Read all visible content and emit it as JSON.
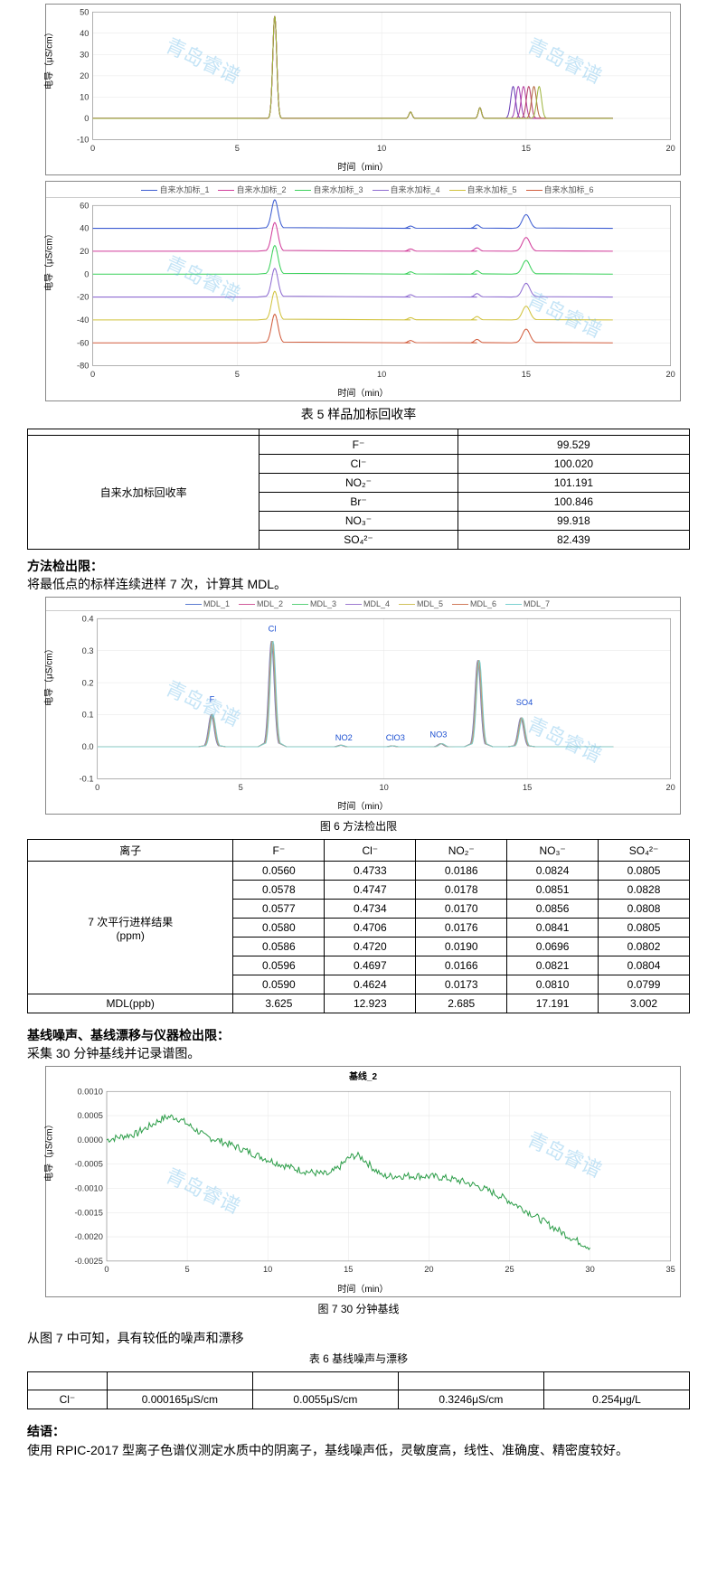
{
  "watermark_text": "青岛睿谱",
  "axis": {
    "y_label": "电导（μS/cm）",
    "x_label": "时间（min）"
  },
  "chart1": {
    "type": "line",
    "xlim": [
      0,
      20
    ],
    "xticks": [
      0,
      5,
      10,
      15,
      20
    ],
    "ylim": [
      -10,
      50
    ],
    "yticks": [
      -10,
      0,
      10,
      20,
      30,
      40,
      50
    ],
    "grid_color": "#d9d9d9",
    "series_colors": [
      "#6a3fb5",
      "#9f3fb5",
      "#b53f9f",
      "#b53f6a",
      "#b56a3f",
      "#9fb53f"
    ],
    "peak_main_x": 6.3,
    "peak_main_h": 48,
    "peak2_x": 11.0,
    "peak2_h": 3,
    "peak3_x": 13.4,
    "peak3_h": 5,
    "peak4_x": 15.0,
    "peak4_h": 15,
    "peak4_spread": 0.5
  },
  "chart2": {
    "type": "line-stacked",
    "xlim": [
      0,
      20
    ],
    "xticks": [
      0,
      5,
      10,
      15,
      20
    ],
    "ylim": [
      -80,
      60
    ],
    "yticks": [
      -80,
      -60,
      -40,
      -20,
      0,
      20,
      40,
      60
    ],
    "offset_step": -20,
    "legend_items": [
      "自来水加标_1",
      "自来水加标_2",
      "自来水加标_3",
      "自来水加标_4",
      "自来水加标_5",
      "自来水加标_6"
    ],
    "series_colors": [
      "#3b5bd1",
      "#d13b9a",
      "#3bd15b",
      "#8e6bd1",
      "#d1c23b",
      "#d15b3b"
    ],
    "peak_main_x": 6.3,
    "peak_main_h": 25,
    "peak4_x": 15.0,
    "peak4_h": 12
  },
  "table5": {
    "caption": "表 5 样品加标回收率",
    "row_label": "自来水加标回收率",
    "rows": [
      {
        "ion": "F⁻",
        "val": "99.529"
      },
      {
        "ion": "Cl⁻",
        "val": "100.020"
      },
      {
        "ion": "NO₂⁻",
        "val": "101.191"
      },
      {
        "ion": "Br⁻",
        "val": "100.846"
      },
      {
        "ion": "NO₃⁻",
        "val": "99.918"
      },
      {
        "ion": "SO₄²⁻",
        "val": "82.439"
      }
    ]
  },
  "mdl_section": {
    "head": "方法检出限：",
    "body": "将最低点的标样连续进样 7 次，计算其 MDL。"
  },
  "chart3": {
    "type": "line",
    "caption": "图 6 方法检出限",
    "xlim": [
      0,
      20
    ],
    "xticks": [
      0,
      5,
      10,
      15,
      20
    ],
    "ylim": [
      -0.1,
      0.4
    ],
    "yticks": [
      -0.1,
      0.0,
      0.1,
      0.2,
      0.3,
      0.4
    ],
    "legend_items": [
      "MDL_1",
      "MDL_2",
      "MDL_3",
      "MDL_4",
      "MDL_5",
      "MDL_6",
      "MDL_7"
    ],
    "series_colors": [
      "#5b7bd1",
      "#d15b9a",
      "#5bd17b",
      "#9e7bd1",
      "#d1c25b",
      "#d17b5b",
      "#7bd1d1"
    ],
    "peaks": [
      {
        "label": "F",
        "x": 4.0,
        "h": 0.1,
        "lx": 4.0,
        "ly": 0.14
      },
      {
        "label": "Cl",
        "x": 6.1,
        "h": 0.33,
        "lx": 6.1,
        "ly": 0.36
      },
      {
        "label": "NO2",
        "x": 8.5,
        "h": 0.005,
        "lx": 8.6,
        "ly": 0.02
      },
      {
        "label": "ClO3",
        "x": 10.3,
        "h": 0.003,
        "lx": 10.4,
        "ly": 0.02
      },
      {
        "label": "NO3",
        "x": 12.0,
        "h": 0.01,
        "lx": 11.9,
        "ly": 0.03
      },
      {
        "label": "",
        "x": 13.3,
        "h": 0.27,
        "lx": 0,
        "ly": 0
      },
      {
        "label": "SO4",
        "x": 14.8,
        "h": 0.09,
        "lx": 14.9,
        "ly": 0.13
      }
    ],
    "label_color": "#1b4fd1"
  },
  "table_mdl": {
    "header": [
      "离子",
      "F⁻",
      "Cl⁻",
      "NO₂⁻",
      "NO₃⁻",
      "SO₄²⁻"
    ],
    "row_label": "7 次平行进样结果\n(ppm)",
    "rows": [
      [
        "0.0560",
        "0.4733",
        "0.0186",
        "0.0824",
        "0.0805"
      ],
      [
        "0.0578",
        "0.4747",
        "0.0178",
        "0.0851",
        "0.0828"
      ],
      [
        "0.0577",
        "0.4734",
        "0.0170",
        "0.0856",
        "0.0808"
      ],
      [
        "0.0580",
        "0.4706",
        "0.0176",
        "0.0841",
        "0.0805"
      ],
      [
        "0.0586",
        "0.4720",
        "0.0190",
        "0.0696",
        "0.0802"
      ],
      [
        "0.0596",
        "0.4697",
        "0.0166",
        "0.0821",
        "0.0804"
      ],
      [
        "0.0590",
        "0.4624",
        "0.0173",
        "0.0810",
        "0.0799"
      ]
    ],
    "mdl_row": [
      "MDL(ppb)",
      "3.625",
      "12.923",
      "2.685",
      "17.191",
      "3.002"
    ]
  },
  "baseline_section": {
    "head": "基线噪声、基线漂移与仪器检出限：",
    "body": "采集 30 分钟基线并记录谱图。"
  },
  "chart4": {
    "type": "line-noise",
    "title": "基线_2",
    "caption": "图 7 30 分钟基线",
    "xlim": [
      0,
      35
    ],
    "xticks": [
      0,
      5,
      10,
      15,
      20,
      25,
      30,
      35
    ],
    "ylim": [
      -0.0025,
      0.001
    ],
    "yticks": [
      -0.0025,
      -0.002,
      -0.0015,
      -0.001,
      -0.0005,
      0.0,
      0.0005,
      0.001
    ],
    "color": "#2e9e4a"
  },
  "baseline_conclusion": "从图 7 中可知，具有较低的噪声和漂移",
  "table6": {
    "caption": "表 6 基线噪声与漂移",
    "row": [
      "Cl⁻",
      "0.000165μS/cm",
      "0.0055μS/cm",
      "0.3246μS/cm",
      "0.254μg/L"
    ]
  },
  "conclusion": {
    "head": "结语：",
    "body": "使用 RPIC-2017 型离子色谱仪测定水质中的阴离子，基线噪声低，灵敏度高，线性、准确度、精密度较好。"
  }
}
